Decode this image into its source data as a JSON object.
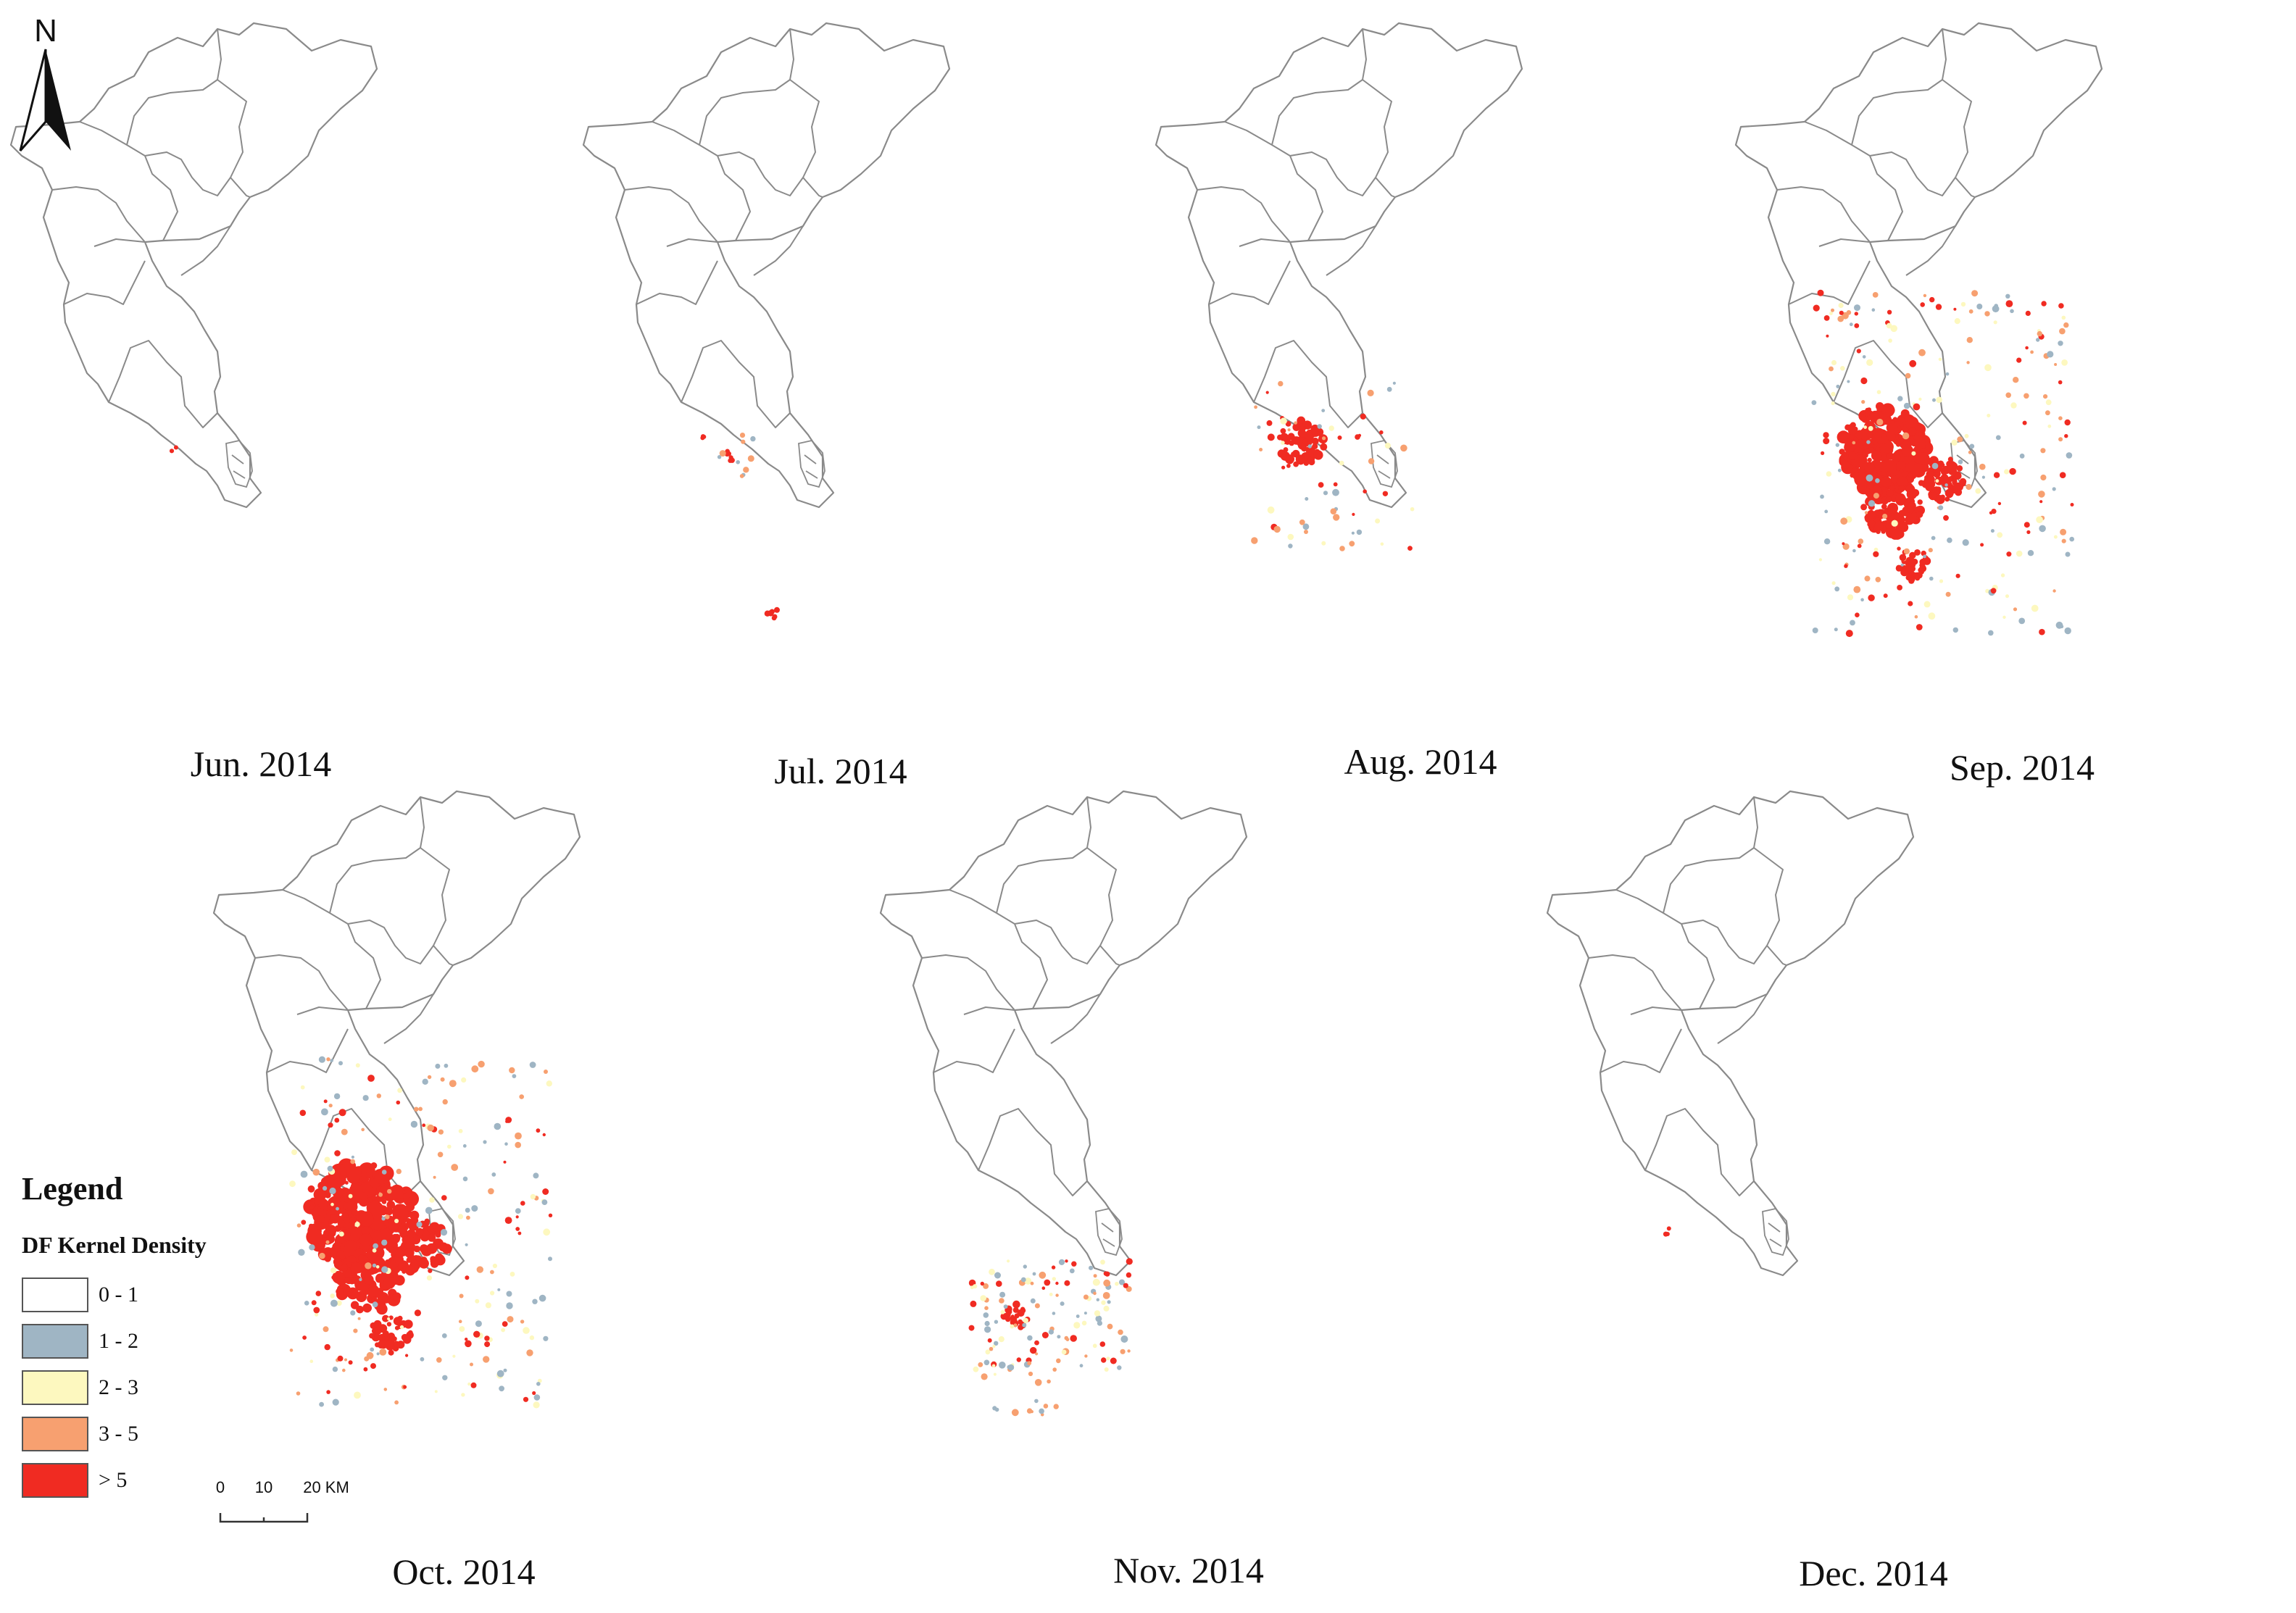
{
  "north_label": "N",
  "panels": [
    {
      "label": "Jun. 2014",
      "level": 0
    },
    {
      "label": "Jul. 2014",
      "level": 1
    },
    {
      "label": "Aug. 2014",
      "level": 2
    },
    {
      "label": "Sep. 2014",
      "level": 4
    },
    {
      "label": "Oct. 2014",
      "level": 5
    },
    {
      "label": "Nov. 2014",
      "level": 3
    },
    {
      "label": "Dec. 2014",
      "level": 0
    }
  ],
  "legend": {
    "title": "Legend",
    "subtitle": "DF Kernel Density",
    "classes": [
      {
        "label": "0 - 1",
        "color": "#ffffff"
      },
      {
        "label": "1 - 2",
        "color": "#9fb5c4"
      },
      {
        "label": "2 - 3",
        "color": "#fdf8bf"
      },
      {
        "label": "3 - 5",
        "color": "#f7a070"
      },
      {
        "label": "> 5",
        "color": "#f02b22"
      }
    ]
  },
  "scale_bar": {
    "ticks": [
      "0",
      "10",
      "20 KM"
    ]
  },
  "colors": {
    "boundary": "#8a8a8a",
    "hot": "#f02b22",
    "warm": "#f7a070",
    "low": "#9fb5c4",
    "mild": "#fdf8bf"
  }
}
